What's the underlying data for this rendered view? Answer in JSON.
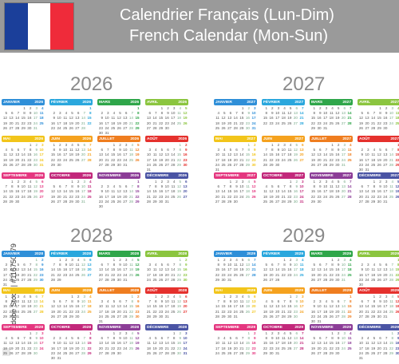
{
  "header": {
    "title_fr": "Calendrier Français (Lun-Dim)",
    "title_en": "French Calendar (Mon-Sun)",
    "flag_colors": [
      "#1b3f9a",
      "#ffffff",
      "#ef2b3a"
    ]
  },
  "side_text": "Adobe Stock | #116750179",
  "year_blocks": [
    {
      "year": "2026",
      "year_label": "2026"
    },
    {
      "year": "2027",
      "year_label": "2027"
    },
    {
      "year": "2028",
      "year_label": "2028"
    },
    {
      "year": "2029",
      "year_label": "2029"
    }
  ],
  "months": [
    {
      "name": "JANVIER",
      "color": "#2f8fd8"
    },
    {
      "name": "FÉVRIER",
      "color": "#2aa7dd"
    },
    {
      "name": "MARS",
      "color": "#2fa64a"
    },
    {
      "name": "AVRIL",
      "color": "#8bc53f"
    },
    {
      "name": "MAI",
      "color": "#f2c51a"
    },
    {
      "name": "JUIN",
      "color": "#f5a21e"
    },
    {
      "name": "JUILLET",
      "color": "#ef7d1f"
    },
    {
      "name": "AOÛT",
      "color": "#e5312d"
    },
    {
      "name": "SEPTEMBRE",
      "color": "#e4367f"
    },
    {
      "name": "OCTOBRE",
      "color": "#c2287b"
    },
    {
      "name": "NOVEMBRE",
      "color": "#8c3d97"
    },
    {
      "name": "DÉCEMBRE",
      "color": "#4a54a4"
    }
  ]
}
